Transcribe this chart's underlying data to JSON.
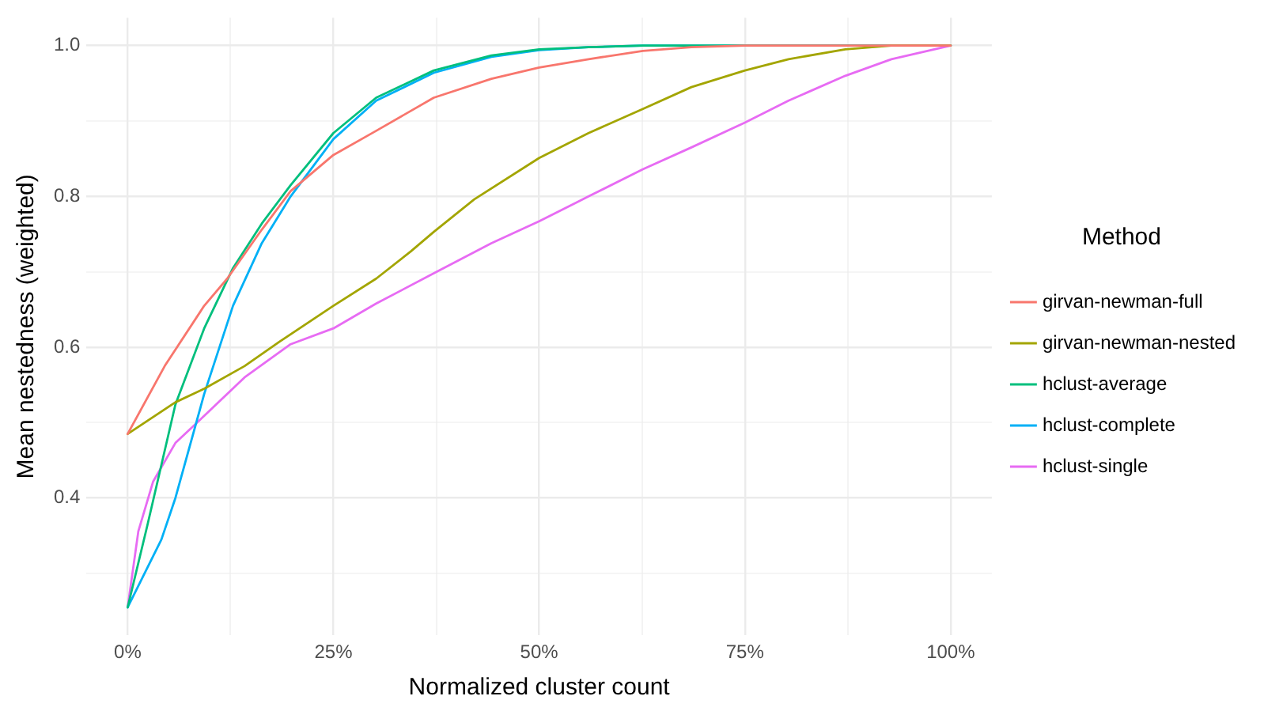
{
  "chart_data": {
    "type": "line",
    "xlabel": "Normalized cluster count",
    "ylabel": "Mean nestedness (weighted)",
    "legend_title": "Method",
    "legend": "right",
    "grid": true,
    "xlim": [
      -0.05,
      1.05
    ],
    "ylim": [
      0.218,
      1.037
    ],
    "xticks": [
      {
        "value": 0,
        "label": "0%"
      },
      {
        "value": 0.125,
        "label": null
      },
      {
        "value": 0.25,
        "label": "25%"
      },
      {
        "value": 0.375,
        "label": null
      },
      {
        "value": 0.5,
        "label": "50%"
      },
      {
        "value": 0.625,
        "label": null
      },
      {
        "value": 0.75,
        "label": "75%"
      },
      {
        "value": 0.875,
        "label": null
      },
      {
        "value": 1,
        "label": "100%"
      }
    ],
    "yticks": [
      {
        "value": 0.3,
        "label": null
      },
      {
        "value": 0.4,
        "label": "0.4"
      },
      {
        "value": 0.5,
        "label": null
      },
      {
        "value": 0.6,
        "label": "0.6"
      },
      {
        "value": 0.7,
        "label": null
      },
      {
        "value": 0.8,
        "label": "0.8"
      },
      {
        "value": 0.9,
        "label": null
      },
      {
        "value": 1.0,
        "label": "1.0"
      }
    ],
    "series": [
      {
        "name": "girvan-newman-full",
        "color": "#f8766d",
        "x": [
          0,
          0.045,
          0.093,
          0.121,
          0.163,
          0.198,
          0.25,
          0.302,
          0.372,
          0.442,
          0.5,
          0.56,
          0.626,
          0.685,
          0.75,
          1
        ],
        "values": [
          0.485,
          0.575,
          0.655,
          0.691,
          0.756,
          0.807,
          0.855,
          0.887,
          0.931,
          0.956,
          0.971,
          0.982,
          0.993,
          0.998,
          1.0,
          1.0
        ]
      },
      {
        "name": "girvan-newman-nested",
        "color": "#a3a500",
        "x": [
          0,
          0.058,
          0.093,
          0.142,
          0.184,
          0.25,
          0.302,
          0.344,
          0.372,
          0.421,
          0.5,
          0.56,
          0.626,
          0.685,
          0.75,
          0.803,
          0.872,
          0.928,
          1
        ],
        "values": [
          0.485,
          0.527,
          0.545,
          0.575,
          0.607,
          0.655,
          0.691,
          0.727,
          0.753,
          0.796,
          0.851,
          0.884,
          0.916,
          0.945,
          0.967,
          0.982,
          0.995,
          1.0,
          1.0
        ]
      },
      {
        "name": "hclust-average",
        "color": "#00bf7d",
        "x": [
          0,
          0.024,
          0.058,
          0.093,
          0.128,
          0.163,
          0.198,
          0.25,
          0.302,
          0.372,
          0.442,
          0.5,
          0.56,
          0.626,
          1
        ],
        "values": [
          0.255,
          0.364,
          0.524,
          0.625,
          0.705,
          0.764,
          0.815,
          0.884,
          0.931,
          0.967,
          0.987,
          0.995,
          0.998,
          1.0,
          1.0
        ]
      },
      {
        "name": "hclust-complete",
        "color": "#00b0f6",
        "x": [
          0,
          0.041,
          0.058,
          0.093,
          0.128,
          0.163,
          0.198,
          0.25,
          0.302,
          0.372,
          0.442,
          0.5,
          0.56,
          0.626,
          1
        ],
        "values": [
          0.255,
          0.345,
          0.4,
          0.538,
          0.655,
          0.738,
          0.8,
          0.876,
          0.927,
          0.964,
          0.985,
          0.994,
          0.998,
          1.0,
          1.0
        ]
      },
      {
        "name": "hclust-single",
        "color": "#e76bf3",
        "x": [
          0,
          0.013,
          0.031,
          0.058,
          0.093,
          0.142,
          0.198,
          0.25,
          0.302,
          0.372,
          0.442,
          0.5,
          0.56,
          0.626,
          0.685,
          0.75,
          0.803,
          0.872,
          0.928,
          1
        ],
        "values": [
          0.255,
          0.356,
          0.422,
          0.473,
          0.509,
          0.56,
          0.604,
          0.625,
          0.658,
          0.698,
          0.738,
          0.767,
          0.8,
          0.836,
          0.865,
          0.898,
          0.927,
          0.96,
          0.982,
          1.0
        ]
      }
    ]
  }
}
